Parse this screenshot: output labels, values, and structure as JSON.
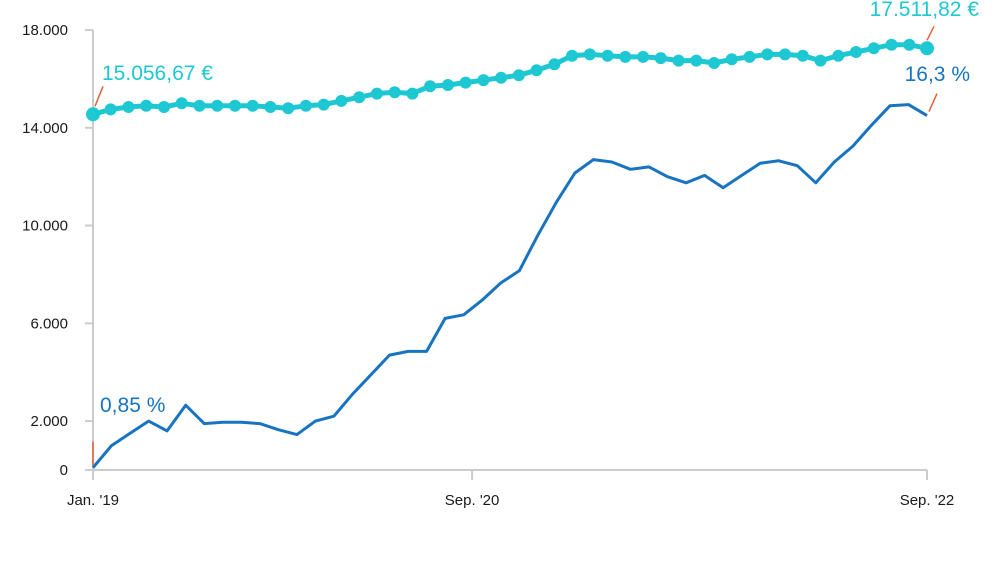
{
  "chart_data": {
    "type": "line",
    "title": "",
    "xlabel": "",
    "ylabel": "",
    "ylim": [
      0,
      18000
    ],
    "y_ticks": [
      "0",
      "2.000",
      "6.000",
      "10.000",
      "14.000",
      "18.000"
    ],
    "y_tick_values": [
      0,
      2000,
      6000,
      10000,
      14000,
      18000
    ],
    "x_ticks": [
      "Jan. '19",
      "Sep. '20",
      "Sep. '22"
    ],
    "x_tick_months": [
      0,
      20,
      44
    ],
    "x_range_months": [
      0,
      44
    ],
    "grid": false,
    "legend": "none",
    "series": [
      {
        "color": "#1ec8d2",
        "markers": true,
        "values": [
          14550,
          14750,
          14850,
          14900,
          14850,
          15000,
          14900,
          14900,
          14900,
          14900,
          14850,
          14800,
          14900,
          14950,
          15100,
          15250,
          15400,
          15450,
          15400,
          15700,
          15750,
          15850,
          15950,
          16050,
          16150,
          16350,
          16600,
          16950,
          17000,
          16950,
          16900,
          16900,
          16850,
          16750,
          16750,
          16650,
          16800,
          16900,
          17000,
          17000,
          16950,
          16750,
          16950,
          17100,
          17250,
          17400,
          17400,
          17250
        ]
      },
      {
        "color": "#1874c0",
        "markers": false,
        "values": [
          100,
          1000,
          1500,
          2000,
          1600,
          2650,
          1900,
          1950,
          1950,
          1900,
          1650,
          1450,
          2000,
          2200,
          3100,
          3900,
          4700,
          4850,
          4850,
          6200,
          6350,
          6950,
          7650,
          8150,
          9600,
          10950,
          12150,
          12700,
          12600,
          12300,
          12400,
          12000,
          11750,
          12050,
          11550,
          12050,
          12550,
          12650,
          12450,
          11750,
          12600,
          13250,
          14100,
          14900,
          14950,
          14500
        ]
      }
    ],
    "annotations": [
      {
        "text": "15.056,67 €",
        "color": "#1ec8d2"
      },
      {
        "text": "17.511,82 €",
        "color": "#1ec8d2"
      },
      {
        "text": "0,85 %",
        "color": "#1874c0"
      },
      {
        "text": "16,3 %",
        "color": "#1874c0"
      }
    ],
    "leader_color": "#e0623a",
    "axis_color": "#cccccc"
  }
}
